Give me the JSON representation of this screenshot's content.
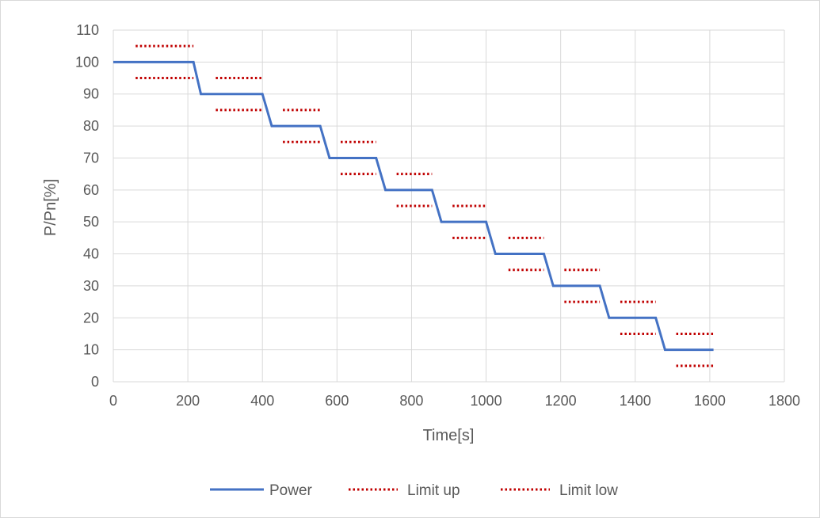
{
  "chart_data": {
    "type": "line",
    "title": "",
    "xlabel": "Time[s]",
    "ylabel": "P/Pn[%]",
    "xlim": [
      0,
      1800
    ],
    "ylim": [
      0,
      110
    ],
    "x_ticks": [
      0,
      200,
      400,
      600,
      800,
      1000,
      1200,
      1400,
      1600,
      1800
    ],
    "y_ticks": [
      0,
      10,
      20,
      30,
      40,
      50,
      60,
      70,
      80,
      90,
      100,
      110
    ],
    "grid": true,
    "legend_position": "bottom",
    "colors": {
      "power": "#4472c4",
      "limits": "#c00000",
      "grid": "#d9d9d9"
    },
    "series": [
      {
        "name": "Power",
        "style": "solid",
        "x": [
          0,
          215,
          235,
          400,
          425,
          555,
          580,
          705,
          730,
          855,
          880,
          1000,
          1025,
          1155,
          1180,
          1305,
          1330,
          1455,
          1480,
          1610
        ],
        "y": [
          100,
          100,
          90,
          90,
          80,
          80,
          70,
          70,
          60,
          60,
          50,
          50,
          40,
          40,
          30,
          30,
          20,
          20,
          10,
          10
        ]
      },
      {
        "name": "Limit up",
        "style": "dotted",
        "segments": [
          [
            60,
            215,
            105
          ],
          [
            275,
            400,
            95
          ],
          [
            455,
            555,
            85
          ],
          [
            610,
            705,
            75
          ],
          [
            760,
            855,
            65
          ],
          [
            910,
            1000,
            55
          ],
          [
            1060,
            1155,
            45
          ],
          [
            1210,
            1305,
            35
          ],
          [
            1360,
            1455,
            25
          ],
          [
            1510,
            1610,
            15
          ]
        ]
      },
      {
        "name": "Limit low",
        "style": "dotted",
        "segments": [
          [
            60,
            215,
            95
          ],
          [
            275,
            400,
            85
          ],
          [
            455,
            555,
            75
          ],
          [
            610,
            705,
            65
          ],
          [
            760,
            855,
            55
          ],
          [
            910,
            1000,
            45
          ],
          [
            1060,
            1155,
            35
          ],
          [
            1210,
            1305,
            25
          ],
          [
            1360,
            1455,
            15
          ],
          [
            1510,
            1610,
            5
          ]
        ]
      }
    ]
  }
}
